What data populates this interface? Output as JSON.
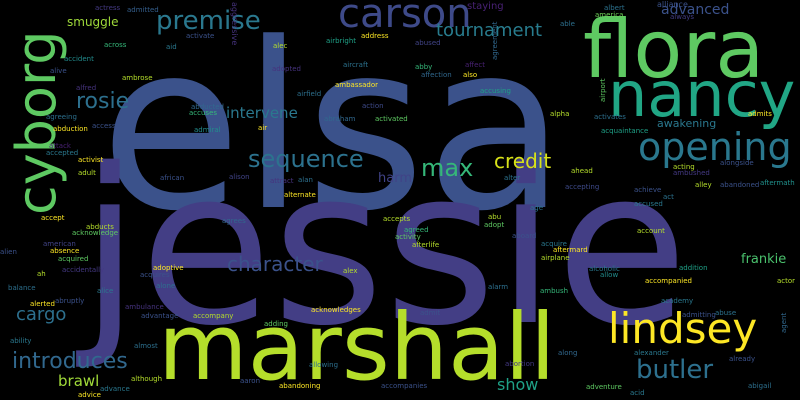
{
  "words": [
    {
      "text": "elsa",
      "color": "#3b528b"
    },
    {
      "text": "jessie",
      "color": "#433e85"
    },
    {
      "text": "marshall",
      "color": "#b5de2b"
    },
    {
      "text": "flora",
      "color": "#5ec962"
    },
    {
      "text": "nancy",
      "color": "#21a685"
    },
    {
      "text": "cyborg",
      "color": "#5ec962"
    },
    {
      "text": "carson",
      "color": "#3e4a89"
    },
    {
      "text": "lindsey",
      "color": "#fde725"
    },
    {
      "text": "opening",
      "color": "#2a788e"
    },
    {
      "text": "premise",
      "color": "#2a788e"
    },
    {
      "text": "sequence",
      "color": "#2c728e"
    },
    {
      "text": "rosie",
      "color": "#2d708e"
    },
    {
      "text": "introduces",
      "color": "#31688e"
    },
    {
      "text": "butler",
      "color": "#2d708e"
    },
    {
      "text": "character",
      "color": "#3b528b"
    },
    {
      "text": "max",
      "color": "#35b779"
    },
    {
      "text": "credit",
      "color": "#d8e219"
    },
    {
      "text": "tournament",
      "color": "#287c8e"
    },
    {
      "text": "advanced",
      "color": "#3b528b"
    },
    {
      "text": "cargo",
      "color": "#2d708e"
    },
    {
      "text": "brawl",
      "color": "#a0da39"
    },
    {
      "text": "show",
      "color": "#1fa187"
    },
    {
      "text": "frankie",
      "color": "#4ac16d"
    },
    {
      "text": "intervene",
      "color": "#2a788e"
    },
    {
      "text": "smuggle",
      "color": "#9fda3a"
    },
    {
      "text": "harm",
      "color": "#404387"
    },
    {
      "text": "awakening",
      "color": "#2a788e"
    },
    {
      "text": "staying",
      "color": "#482173"
    },
    {
      "text": "actress",
      "color": "#443983"
    },
    {
      "text": "admitted",
      "color": "#355f8d"
    },
    {
      "text": "aggressive",
      "color": "#46337e"
    },
    {
      "text": "albert",
      "color": "#2c728e"
    },
    {
      "text": "alliance",
      "color": "#3b528b"
    },
    {
      "text": "america",
      "color": "#6ece58"
    },
    {
      "text": "always",
      "color": "#433e85"
    },
    {
      "text": "able",
      "color": "#2d708e"
    },
    {
      "text": "accident",
      "color": "#228c8d"
    },
    {
      "text": "across",
      "color": "#35b779"
    },
    {
      "text": "aid",
      "color": "#2a788e"
    },
    {
      "text": "activate",
      "color": "#3b528b"
    },
    {
      "text": "alec",
      "color": "#b5de2b"
    },
    {
      "text": "airbright",
      "color": "#1fa187"
    },
    {
      "text": "address",
      "color": "#fde725"
    },
    {
      "text": "abused",
      "color": "#414487"
    },
    {
      "text": "agreement",
      "color": "#31688e"
    },
    {
      "text": "adopted",
      "color": "#46337e"
    },
    {
      "text": "aircraft",
      "color": "#2c728e"
    },
    {
      "text": "abby",
      "color": "#35b779"
    },
    {
      "text": "affection",
      "color": "#31688e"
    },
    {
      "text": "also",
      "color": "#fde725"
    },
    {
      "text": "affect",
      "color": "#482173"
    },
    {
      "text": "ambrose",
      "color": "#b5de2b"
    },
    {
      "text": "alfred",
      "color": "#46337e"
    },
    {
      "text": "agreeing",
      "color": "#2d708e"
    },
    {
      "text": "abduction",
      "color": "#fde725"
    },
    {
      "text": "access",
      "color": "#3b528b"
    },
    {
      "text": "attack",
      "color": "#482173"
    },
    {
      "text": "accepted",
      "color": "#2a788e"
    },
    {
      "text": "abducted",
      "color": "#31688e"
    },
    {
      "text": "accuses",
      "color": "#35b779"
    },
    {
      "text": "ambassador",
      "color": "#fde725"
    },
    {
      "text": "airfield",
      "color": "#2d708e"
    },
    {
      "text": "accusing",
      "color": "#1fa187"
    },
    {
      "text": "action",
      "color": "#3e4a89"
    },
    {
      "text": "activated",
      "color": "#5ec962"
    },
    {
      "text": "abraham",
      "color": "#31688e"
    },
    {
      "text": "admiral",
      "color": "#228c8d"
    },
    {
      "text": "air",
      "color": "#fde725"
    },
    {
      "text": "activist",
      "color": "#fde725"
    },
    {
      "text": "adult",
      "color": "#b5de2b"
    },
    {
      "text": "african",
      "color": "#3b528b"
    },
    {
      "text": "alison",
      "color": "#414487"
    },
    {
      "text": "attract",
      "color": "#46337e"
    },
    {
      "text": "alan",
      "color": "#2d708e"
    },
    {
      "text": "alter",
      "color": "#2c728e"
    },
    {
      "text": "ahead",
      "color": "#b5de2b"
    },
    {
      "text": "acting",
      "color": "#b5de2b"
    },
    {
      "text": "ambushed",
      "color": "#443983"
    },
    {
      "text": "alongside",
      "color": "#3b528b"
    },
    {
      "text": "admits",
      "color": "#fde725"
    },
    {
      "text": "activates",
      "color": "#2d708e"
    },
    {
      "text": "acquaintance",
      "color": "#1fa187"
    },
    {
      "text": "accepting",
      "color": "#3e4a89"
    },
    {
      "text": "achieve",
      "color": "#3b528b"
    },
    {
      "text": "act",
      "color": "#2c728e"
    },
    {
      "text": "accused",
      "color": "#2a788e"
    },
    {
      "text": "alley",
      "color": "#b5de2b"
    },
    {
      "text": "abandoned",
      "color": "#3b528b"
    },
    {
      "text": "aftermath",
      "color": "#21918c"
    },
    {
      "text": "accept",
      "color": "#fde725"
    },
    {
      "text": "abducts",
      "color": "#b5de2b"
    },
    {
      "text": "acknowledge",
      "color": "#5ec962"
    },
    {
      "text": "american",
      "color": "#414487"
    },
    {
      "text": "absence",
      "color": "#fde725"
    },
    {
      "text": "acquired",
      "color": "#5ec962"
    },
    {
      "text": "accidentally",
      "color": "#443983"
    },
    {
      "text": "alternate",
      "color": "#fde725"
    },
    {
      "text": "agrees",
      "color": "#31688e"
    },
    {
      "text": "activity",
      "color": "#5ec962"
    },
    {
      "text": "accepts",
      "color": "#b5de2b"
    },
    {
      "text": "agreed",
      "color": "#35b779"
    },
    {
      "text": "afterlife",
      "color": "#b5de2b"
    },
    {
      "text": "abu",
      "color": "#b5de2b"
    },
    {
      "text": "adopt",
      "color": "#5ec962"
    },
    {
      "text": "aboard",
      "color": "#3b528b"
    },
    {
      "text": "age",
      "color": "#2c728e"
    },
    {
      "text": "acquire",
      "color": "#2a788e"
    },
    {
      "text": "aftermard",
      "color": "#fde725"
    },
    {
      "text": "airplane",
      "color": "#b5de2b"
    },
    {
      "text": "alcoholic",
      "color": "#2a788e"
    },
    {
      "text": "allow",
      "color": "#228c8d"
    },
    {
      "text": "account",
      "color": "#b5de2b"
    },
    {
      "text": "addition",
      "color": "#1fa187"
    },
    {
      "text": "actor",
      "color": "#b5de2b"
    },
    {
      "text": "adoptive",
      "color": "#fde725"
    },
    {
      "text": "acquires",
      "color": "#3b528b"
    },
    {
      "text": "alone",
      "color": "#2d708e"
    },
    {
      "text": "alex",
      "color": "#b5de2b"
    },
    {
      "text": "alarm",
      "color": "#2d708e"
    },
    {
      "text": "ambush",
      "color": "#35b779"
    },
    {
      "text": "accompanied",
      "color": "#fde725"
    },
    {
      "text": "academy",
      "color": "#2a788e"
    },
    {
      "text": "admitting",
      "color": "#3b528b"
    },
    {
      "text": "abuse",
      "color": "#2c728e"
    },
    {
      "text": "alien",
      "color": "#3b528b"
    },
    {
      "text": "ah",
      "color": "#b5de2b"
    },
    {
      "text": "balance",
      "color": "#2d708e"
    },
    {
      "text": "alerted",
      "color": "#fde725"
    },
    {
      "text": "abruptly",
      "color": "#3b528b"
    },
    {
      "text": "alice",
      "color": "#2a788e"
    },
    {
      "text": "ambulance",
      "color": "#46337e"
    },
    {
      "text": "advantage",
      "color": "#3b528b"
    },
    {
      "text": "accompany",
      "color": "#b5de2b"
    },
    {
      "text": "adding",
      "color": "#5ec962"
    },
    {
      "text": "acknowledges",
      "color": "#fde725"
    },
    {
      "text": "admit",
      "color": "#3b528b"
    },
    {
      "text": "alexander",
      "color": "#2a788e"
    },
    {
      "text": "already",
      "color": "#3b528b"
    },
    {
      "text": "along",
      "color": "#31688e"
    },
    {
      "text": "abortion",
      "color": "#443983"
    },
    {
      "text": "almost",
      "color": "#2d708e"
    },
    {
      "text": "although",
      "color": "#b5de2b"
    },
    {
      "text": "advance",
      "color": "#2a788e"
    },
    {
      "text": "advice",
      "color": "#fde725"
    },
    {
      "text": "aaron",
      "color": "#3b528b"
    },
    {
      "text": "abandoning",
      "color": "#fde725"
    },
    {
      "text": "allowing",
      "color": "#2d708e"
    },
    {
      "text": "accompanies",
      "color": "#3b528b"
    },
    {
      "text": "adventure",
      "color": "#5ec962"
    },
    {
      "text": "acid",
      "color": "#2a788e"
    },
    {
      "text": "abigail",
      "color": "#2d708e"
    },
    {
      "text": "ability",
      "color": "#2a788e"
    },
    {
      "text": "agent",
      "color": "#31688e"
    },
    {
      "text": "alive",
      "color": "#3b528b"
    },
    {
      "text": "airport",
      "color": "#5ec962"
    },
    {
      "text": "alpha",
      "color": "#b5de2b"
    }
  ]
}
